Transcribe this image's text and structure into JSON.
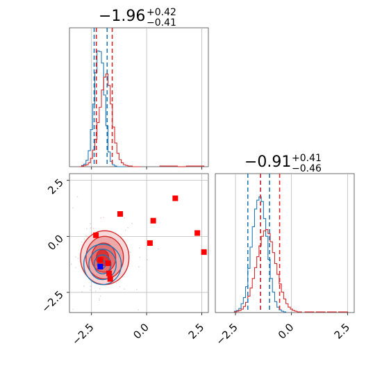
{
  "chart_data": {
    "type": "corner",
    "colors": {
      "posterior_a": "#1f77b4",
      "posterior_b": "#d62728",
      "marker_red": "#ff0000",
      "marker_blue": "#0000ff",
      "grid": "#b0b0b0"
    },
    "tick_labels": [
      "−2.5",
      "0.0",
      "2.5"
    ],
    "panel_top_left": {
      "type": "histogram",
      "title": {
        "main": "−1.96",
        "sup": "+0.42",
        "sub": "−0.41"
      },
      "xlim": [
        -3.5,
        2.8
      ],
      "grid": true,
      "vlines_blue": [
        -2.38,
        -1.79
      ],
      "vlines_red": [
        -2.28,
        -1.56
      ],
      "hist_blue": {
        "x": [
          -3.0,
          -2.9,
          -2.8,
          -2.7,
          -2.6,
          -2.5,
          -2.4,
          -2.3,
          -2.2,
          -2.1,
          -2.0,
          -1.9,
          -1.8,
          -1.7,
          -1.6,
          -1.5,
          -1.4,
          -1.3,
          -1.2,
          -1.1,
          -1.0
        ],
        "y": [
          0,
          2,
          4,
          10,
          25,
          58,
          98,
          147,
          181,
          180,
          162,
          112,
          64,
          23,
          8,
          3,
          1,
          0,
          0,
          0,
          0
        ]
      },
      "hist_red": {
        "x": [
          -3.0,
          -2.9,
          -2.8,
          -2.7,
          -2.6,
          -2.5,
          -2.4,
          -2.3,
          -2.2,
          -2.1,
          -2.0,
          -1.9,
          -1.8,
          -1.7,
          -1.6,
          -1.5,
          -1.4,
          -1.3,
          -1.2,
          -1.1,
          -1.0,
          -0.9,
          -0.8,
          -0.7,
          -0.6,
          -0.5,
          -0.4,
          -0.3
        ],
        "y": [
          0,
          1,
          2,
          3,
          6,
          13,
          26,
          43,
          69,
          93,
          120,
          140,
          145,
          127,
          98,
          62,
          37,
          21,
          11,
          6,
          3,
          2,
          1,
          1,
          0,
          0,
          0,
          0
        ]
      },
      "hist_red_tail": {
        "x": [
          0.8,
          1.2,
          1.6,
          2.0,
          2.4
        ],
        "y": [
          1,
          1,
          0,
          1,
          1
        ]
      }
    },
    "panel_bottom_right": {
      "type": "histogram",
      "title": {
        "main": "−0.91",
        "sup": "+0.41",
        "sub": "−0.46"
      },
      "xlim": [
        -3.4,
        2.8
      ],
      "grid": true,
      "vlines_blue": [
        -1.95,
        -1.38,
        -0.98
      ],
      "vlines_red": [
        -1.38,
        -0.53
      ],
      "hist_blue": {
        "x": [
          -2.5,
          -2.4,
          -2.3,
          -2.2,
          -2.1,
          -2.0,
          -1.9,
          -1.8,
          -1.7,
          -1.6,
          -1.5,
          -1.4,
          -1.3,
          -1.2,
          -1.1,
          -1.0,
          -0.9,
          -0.8,
          -0.7,
          -0.6,
          -0.5,
          -0.4,
          -0.3
        ],
        "y": [
          2,
          3,
          6,
          13,
          22,
          38,
          65,
          96,
          126,
          152,
          165,
          170,
          163,
          138,
          112,
          78,
          50,
          30,
          16,
          8,
          4,
          2,
          1
        ]
      },
      "hist_red": {
        "x": [
          -2.5,
          -2.4,
          -2.3,
          -2.2,
          -2.1,
          -2.0,
          -1.9,
          -1.8,
          -1.7,
          -1.6,
          -1.5,
          -1.4,
          -1.3,
          -1.2,
          -1.1,
          -1.0,
          -0.9,
          -0.8,
          -0.7,
          -0.6,
          -0.5,
          -0.4,
          -0.3,
          -0.2,
          -0.1,
          0.0,
          0.1,
          0.2,
          0.3,
          0.4
        ],
        "y": [
          1,
          2,
          3,
          5,
          9,
          15,
          24,
          36,
          50,
          66,
          82,
          98,
          112,
          120,
          122,
          116,
          104,
          88,
          72,
          56,
          42,
          30,
          20,
          13,
          8,
          5,
          3,
          2,
          1,
          1
        ]
      },
      "hist_red_tail": {
        "x": [
          0.8,
          1.3,
          1.8,
          2.3
        ],
        "y": [
          1,
          1,
          1,
          1
        ]
      }
    },
    "panel_bottom_left": {
      "type": "scatter",
      "xlim": [
        -3.5,
        2.8
      ],
      "ylim": [
        -3.4,
        2.8
      ],
      "grid": true,
      "red_squares": [
        [
          -2.3,
          0.05
        ],
        [
          -2.1,
          -1.05
        ],
        [
          -1.75,
          -1.2
        ],
        [
          -1.7,
          -1.65
        ],
        [
          -1.65,
          -1.9
        ],
        [
          -1.2,
          1.0
        ],
        [
          0.15,
          -0.3
        ],
        [
          0.3,
          0.7
        ],
        [
          1.3,
          1.7
        ],
        [
          2.3,
          0.15
        ],
        [
          2.6,
          -0.7
        ]
      ],
      "blue_squares": [
        [
          -2.1,
          -1.35
        ]
      ],
      "contours_red": [
        {
          "cx": -1.9,
          "cy": -0.95,
          "rx": 1.1,
          "ry": 1.2
        },
        {
          "cx": -1.9,
          "cy": -0.95,
          "rx": 0.85,
          "ry": 0.95
        },
        {
          "cx": -1.95,
          "cy": -0.95,
          "rx": 0.55,
          "ry": 0.65
        },
        {
          "cx": -2.0,
          "cy": -0.95,
          "rx": 0.28,
          "ry": 0.35
        }
      ],
      "contours_blue": [
        {
          "cx": -2.0,
          "cy": -1.25,
          "rx": 0.85,
          "ry": 0.9
        },
        {
          "cx": -2.0,
          "cy": -1.25,
          "rx": 0.62,
          "ry": 0.68
        },
        {
          "cx": -2.0,
          "cy": -1.25,
          "rx": 0.38,
          "ry": 0.42
        },
        {
          "cx": -2.05,
          "cy": -1.25,
          "rx": 0.18,
          "ry": 0.2
        }
      ]
    }
  }
}
